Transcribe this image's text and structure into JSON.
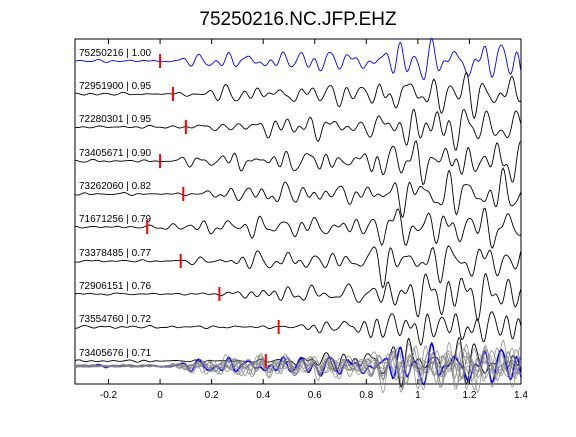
{
  "chart_data": {
    "type": "line",
    "title": "75250216.NC.JFP.EHZ",
    "xlim": [
      -0.33,
      1.4
    ],
    "x_ticks": [
      -0.2,
      0,
      0.2,
      0.4,
      0.6,
      0.8,
      1,
      1.2,
      1.4
    ],
    "x_tick_labels": [
      "-0.2",
      "0",
      "0.2",
      "0.4",
      "0.6",
      "0.8",
      "1",
      "1.2",
      "1.4"
    ],
    "xlabel": "",
    "ylabel": "",
    "grid": false,
    "template_color": "#0000ff",
    "trace_color": "#000000",
    "pick_color": "#ff0000",
    "stack_color": "#808080",
    "traces": [
      {
        "label": "75250216 | 1.00",
        "event_id": "75250216",
        "cc": 1.0,
        "pick_time": 0.0
      },
      {
        "label": "72951900 | 0.95",
        "event_id": "72951900",
        "cc": 0.95,
        "pick_time": 0.05
      },
      {
        "label": "72280301 | 0.95",
        "event_id": "72280301",
        "cc": 0.95,
        "pick_time": 0.1
      },
      {
        "label": "73405671 | 0.90",
        "event_id": "73405671",
        "cc": 0.9,
        "pick_time": 0.0
      },
      {
        "label": "73262060 | 0.82",
        "event_id": "73262060",
        "cc": 0.82,
        "pick_time": 0.09
      },
      {
        "label": "71671256 | 0.79",
        "event_id": "71671256",
        "cc": 0.79,
        "pick_time": -0.05
      },
      {
        "label": "73378485 | 0.77",
        "event_id": "73378485",
        "cc": 0.77,
        "pick_time": 0.08
      },
      {
        "label": "72906151 | 0.76",
        "event_id": "72906151",
        "cc": 0.76,
        "pick_time": 0.23
      },
      {
        "label": "73554760 | 0.72",
        "event_id": "73554760",
        "cc": 0.72,
        "pick_time": 0.46
      },
      {
        "label": "73405676 | 0.71",
        "event_id": "73405676",
        "cc": 0.71,
        "pick_time": 0.41
      }
    ]
  }
}
